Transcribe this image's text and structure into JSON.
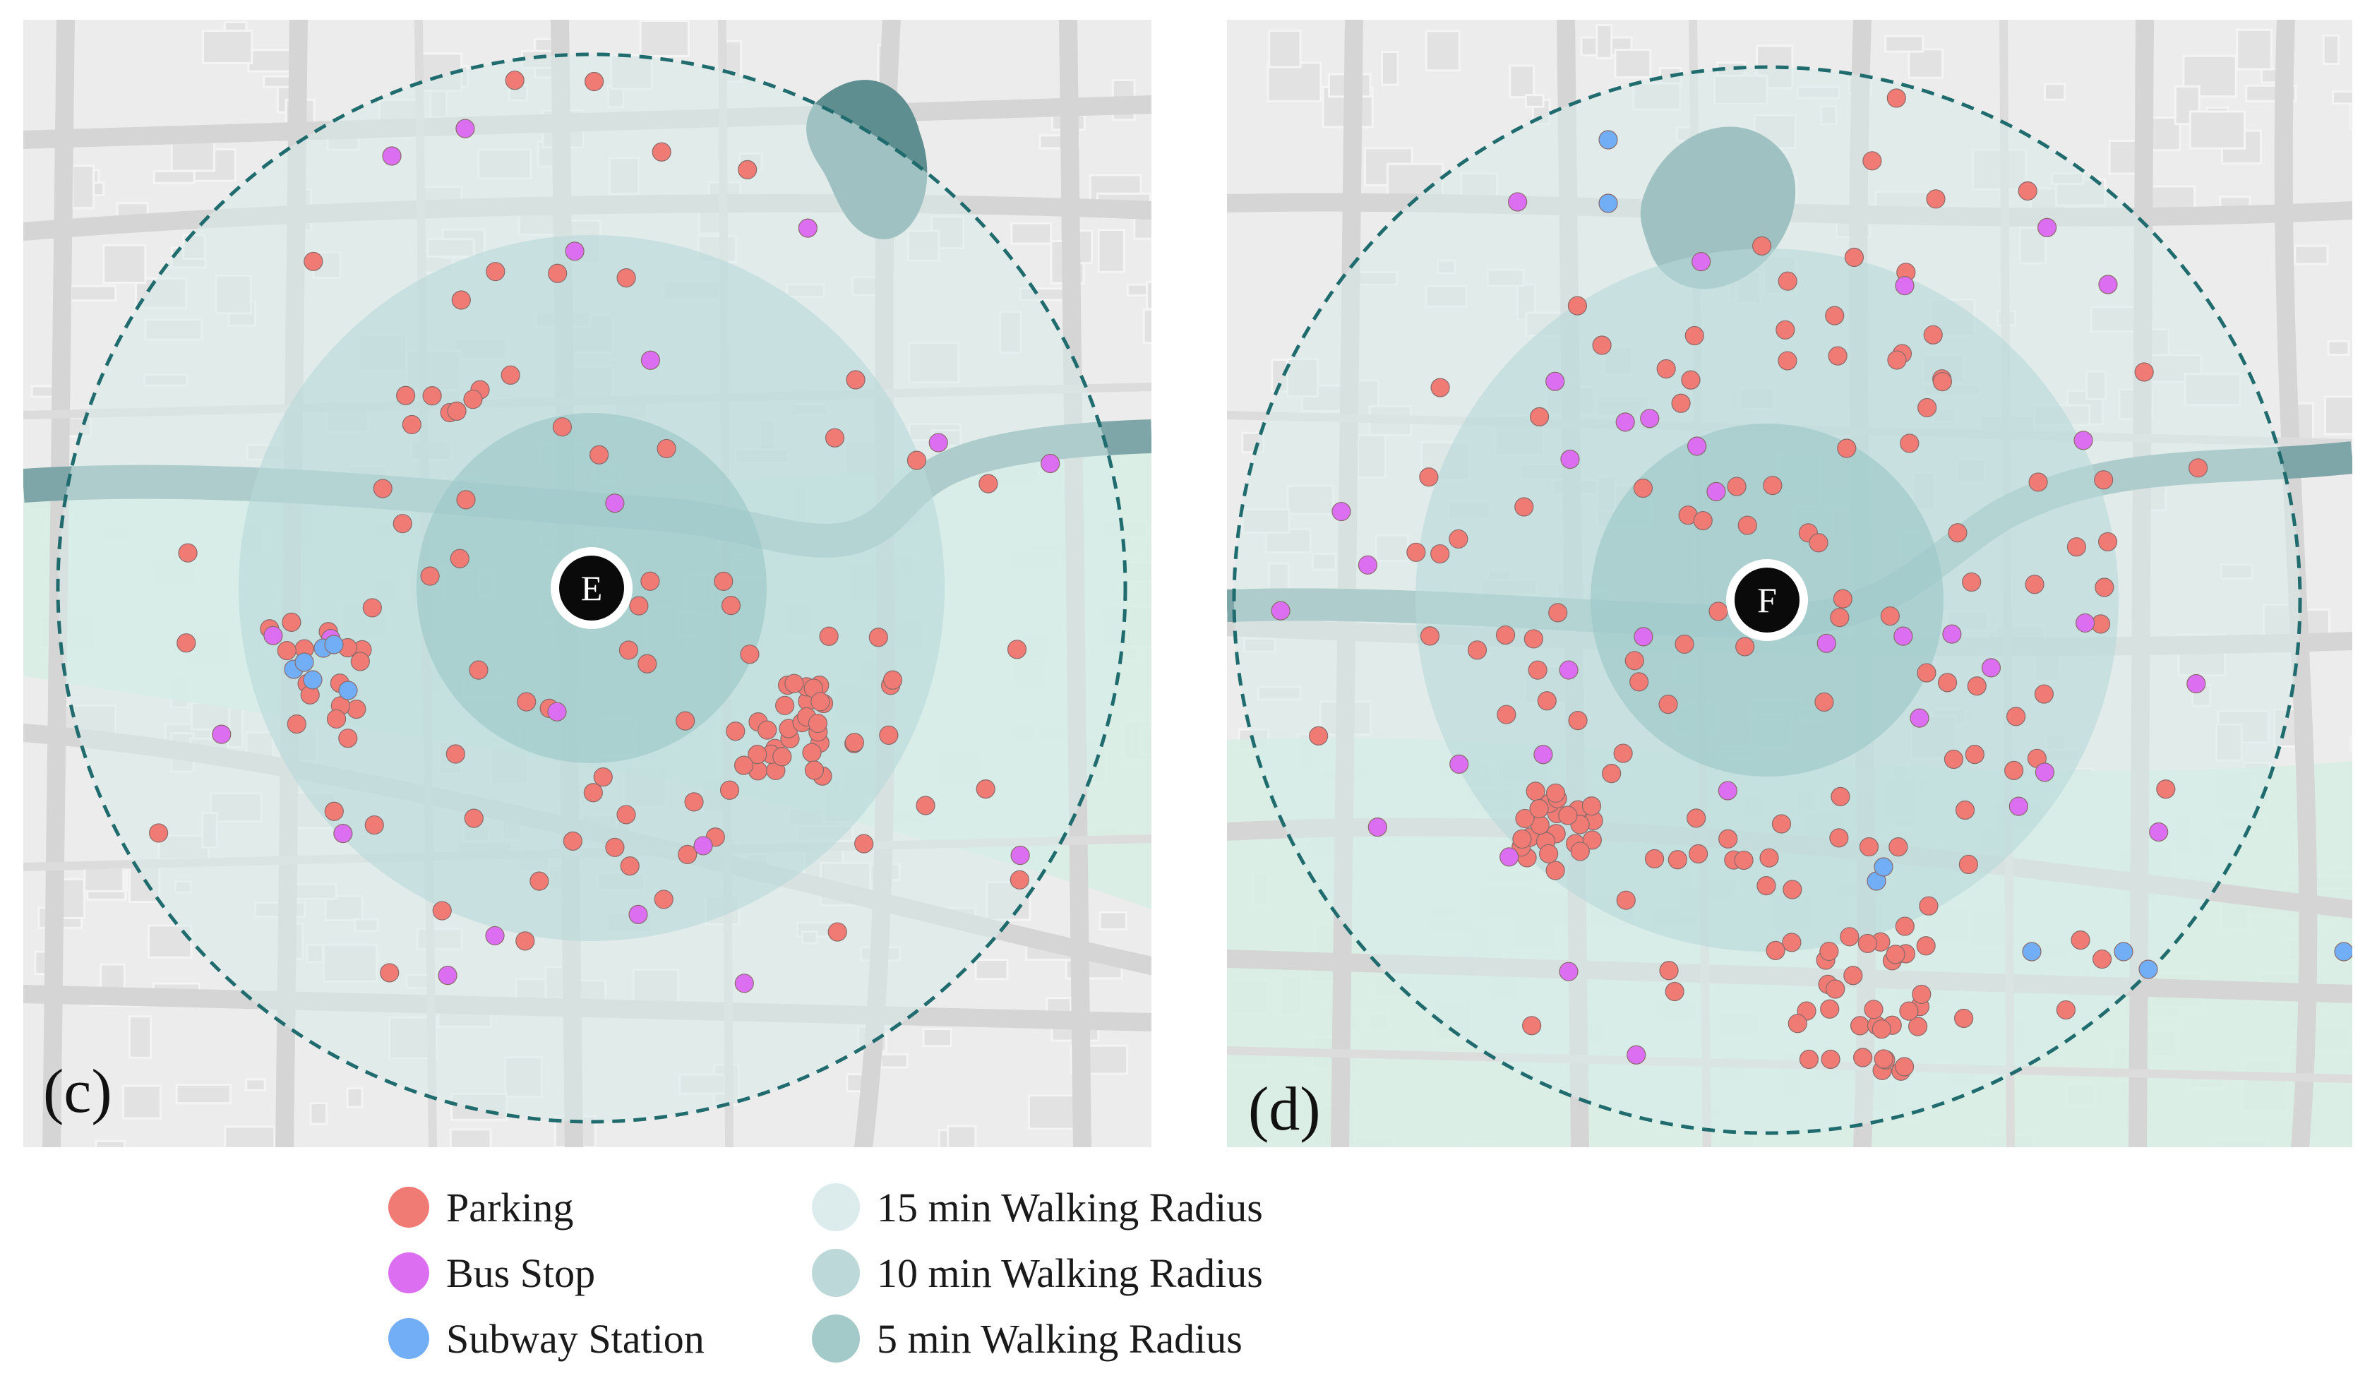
{
  "colors": {
    "parking": "#f07a74",
    "bus_stop": "#dc6ef2",
    "subway_station": "#72aef5",
    "radius_15": "#d7ebea",
    "radius_10": "#b8d8d8",
    "radius_5": "#9dc7c7",
    "boundary_dash": "#1f6b6e",
    "map_background": "#ececec",
    "river": "#7ea6a8",
    "lake": "#5e8e90",
    "road": "#d5d5d5",
    "green_area": "#d8eee6"
  },
  "maps": [
    {
      "label": "(c)",
      "center_marker": "E",
      "icons": {
        "parking": "red-circle",
        "bus_stop": "purple-circle",
        "subway": "blue-circle",
        "center": "black-circle-with-white-ring"
      }
    },
    {
      "label": "(d)",
      "center_marker": "F",
      "icons": {
        "parking": "red-circle",
        "bus_stop": "purple-circle",
        "subway": "blue-circle",
        "center": "black-circle-with-white-ring"
      }
    }
  ],
  "legend": {
    "points": [
      {
        "label": "Parking",
        "color": "#f07a74"
      },
      {
        "label": "Bus Stop",
        "color": "#dc6ef2"
      },
      {
        "label": "Subway Station",
        "color": "#72aef5"
      }
    ],
    "radii": [
      {
        "label": "15 min Walking Radius",
        "color": "#dcecec"
      },
      {
        "label": "10 min Walking Radius",
        "color": "#bcd8d9"
      },
      {
        "label": "5 min Walking Radius",
        "color": "#a3c9c9"
      }
    ]
  }
}
